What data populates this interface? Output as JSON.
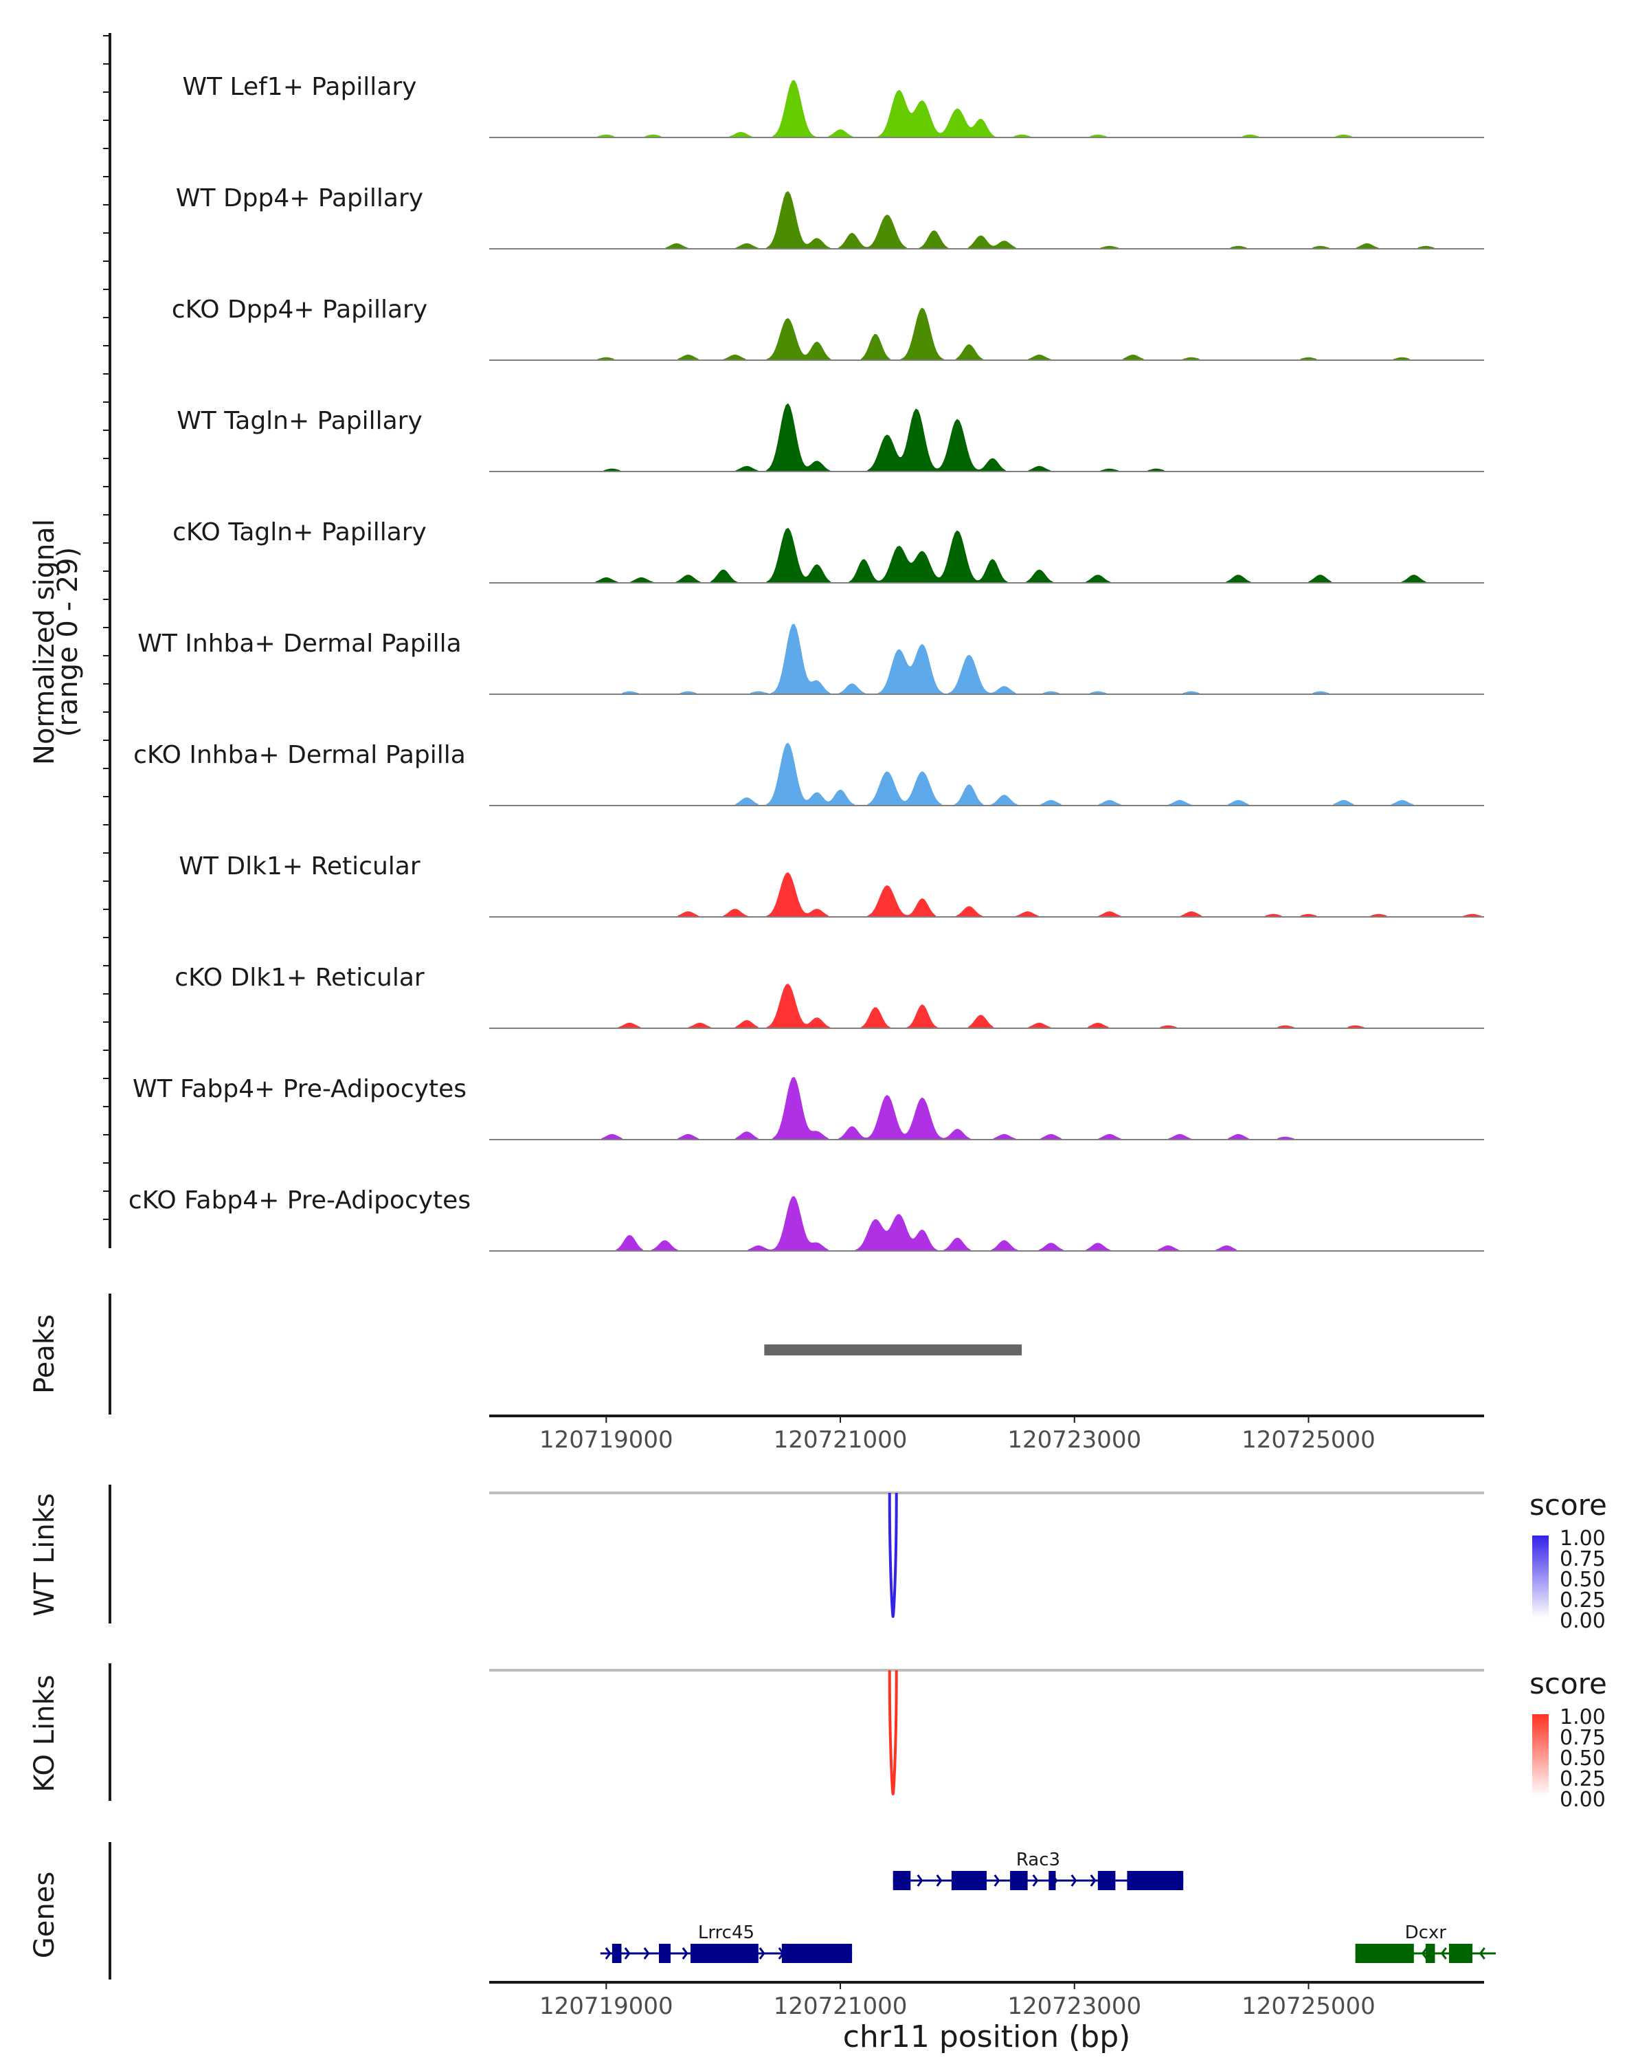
{
  "chart_data": {
    "type": "area",
    "chrom": "chr11",
    "xlim": [
      120718000,
      120726500
    ],
    "x_ticks": [
      120719000,
      120721000,
      120723000,
      120725000
    ],
    "x_tick_labels": [
      "120719000",
      "120721000",
      "120723000",
      "120725000"
    ],
    "xlabel": "chr11 position (bp)",
    "coverage_ylabel": [
      "Normalized signal",
      "(range 0 - 29)"
    ],
    "ylim": [
      0,
      29
    ],
    "coverage_tracks": [
      {
        "name": "WT Lef1+ Papillary",
        "color": "#66CC00",
        "peaks": [
          [
            120719000,
            1
          ],
          [
            120719400,
            1
          ],
          [
            120720150,
            2
          ],
          [
            120720600,
            22
          ],
          [
            120721000,
            3
          ],
          [
            120721500,
            18
          ],
          [
            120721700,
            14
          ],
          [
            120722000,
            11
          ],
          [
            120722200,
            7
          ],
          [
            120722550,
            1
          ],
          [
            120723200,
            1
          ],
          [
            120724500,
            1
          ],
          [
            120725300,
            1
          ]
        ]
      },
      {
        "name": "WT Dpp4+ Papillary",
        "color": "#4C8C00",
        "peaks": [
          [
            120719600,
            2
          ],
          [
            120720200,
            2
          ],
          [
            120720550,
            22
          ],
          [
            120720800,
            4
          ],
          [
            120721100,
            6
          ],
          [
            120721400,
            13
          ],
          [
            120721800,
            7
          ],
          [
            120722200,
            5
          ],
          [
            120722400,
            3
          ],
          [
            120723300,
            1
          ],
          [
            120724400,
            1
          ],
          [
            120725100,
            1
          ],
          [
            120725500,
            2
          ],
          [
            120726000,
            1
          ]
        ]
      },
      {
        "name": "cKO Dpp4+ Papillary",
        "color": "#4C8C00",
        "peaks": [
          [
            120719000,
            1
          ],
          [
            120719700,
            2
          ],
          [
            120720100,
            2
          ],
          [
            120720550,
            16
          ],
          [
            120720800,
            7
          ],
          [
            120721300,
            10
          ],
          [
            120721700,
            20
          ],
          [
            120722100,
            6
          ],
          [
            120722700,
            2
          ],
          [
            120723500,
            2
          ],
          [
            120724000,
            1
          ],
          [
            120725000,
            1
          ],
          [
            120725800,
            1
          ]
        ]
      },
      {
        "name": "WT Tagln+ Papillary",
        "color": "#006400",
        "peaks": [
          [
            120719050,
            1
          ],
          [
            120720200,
            2
          ],
          [
            120720550,
            26
          ],
          [
            120720800,
            4
          ],
          [
            120721400,
            14
          ],
          [
            120721650,
            24
          ],
          [
            120722000,
            20
          ],
          [
            120722300,
            5
          ],
          [
            120722700,
            2
          ],
          [
            120723300,
            1
          ],
          [
            120723700,
            1
          ]
        ]
      },
      {
        "name": "cKO Tagln+ Papillary",
        "color": "#006400",
        "peaks": [
          [
            120719000,
            2
          ],
          [
            120719300,
            2
          ],
          [
            120719700,
            3
          ],
          [
            120720000,
            5
          ],
          [
            120720550,
            21
          ],
          [
            120720800,
            7
          ],
          [
            120721200,
            9
          ],
          [
            120721500,
            14
          ],
          [
            120721700,
            12
          ],
          [
            120722000,
            20
          ],
          [
            120722300,
            9
          ],
          [
            120722700,
            5
          ],
          [
            120723200,
            3
          ],
          [
            120724400,
            3
          ],
          [
            120725100,
            3
          ],
          [
            120725900,
            3
          ]
        ]
      },
      {
        "name": "WT Inhba+ Dermal Papilla",
        "color": "#5DA9E9",
        "peaks": [
          [
            120719200,
            1
          ],
          [
            120719700,
            1
          ],
          [
            120720300,
            1
          ],
          [
            120720600,
            27
          ],
          [
            120720800,
            5
          ],
          [
            120721100,
            4
          ],
          [
            120721500,
            17
          ],
          [
            120721700,
            19
          ],
          [
            120722100,
            15
          ],
          [
            120722400,
            3
          ],
          [
            120722800,
            1
          ],
          [
            120723200,
            1
          ],
          [
            120724000,
            1
          ],
          [
            120725100,
            1
          ]
        ]
      },
      {
        "name": "cKO Inhba+ Dermal Papilla",
        "color": "#5DA9E9",
        "peaks": [
          [
            120720200,
            3
          ],
          [
            120720550,
            24
          ],
          [
            120720800,
            5
          ],
          [
            120721000,
            6
          ],
          [
            120721400,
            13
          ],
          [
            120721700,
            13
          ],
          [
            120722100,
            8
          ],
          [
            120722400,
            4
          ],
          [
            120722800,
            2
          ],
          [
            120723300,
            2
          ],
          [
            120723900,
            2
          ],
          [
            120724400,
            2
          ],
          [
            120725300,
            2
          ],
          [
            120725800,
            2
          ]
        ]
      },
      {
        "name": "WT Dlk1+ Reticular",
        "color": "#FF3333",
        "peaks": [
          [
            120719700,
            2
          ],
          [
            120720100,
            3
          ],
          [
            120720550,
            17
          ],
          [
            120720800,
            3
          ],
          [
            120721400,
            12
          ],
          [
            120721700,
            7
          ],
          [
            120722100,
            4
          ],
          [
            120722600,
            2
          ],
          [
            120723300,
            2
          ],
          [
            120724000,
            2
          ],
          [
            120724700,
            1
          ],
          [
            120725000,
            1
          ],
          [
            120725600,
            1
          ],
          [
            120726400,
            1
          ]
        ]
      },
      {
        "name": "cKO Dlk1+ Reticular",
        "color": "#FF3333",
        "peaks": [
          [
            120719200,
            2
          ],
          [
            120719800,
            2
          ],
          [
            120720200,
            3
          ],
          [
            120720550,
            17
          ],
          [
            120720800,
            4
          ],
          [
            120721300,
            8
          ],
          [
            120721700,
            9
          ],
          [
            120722200,
            5
          ],
          [
            120722700,
            2
          ],
          [
            120723200,
            2
          ],
          [
            120723800,
            1
          ],
          [
            120724800,
            1
          ],
          [
            120725400,
            1
          ]
        ]
      },
      {
        "name": "WT Fabp4+ Pre-Adipocytes",
        "color": "#B030E6",
        "peaks": [
          [
            120719050,
            2
          ],
          [
            120719700,
            2
          ],
          [
            120720200,
            3
          ],
          [
            120720600,
            24
          ],
          [
            120720800,
            3
          ],
          [
            120721100,
            5
          ],
          [
            120721400,
            17
          ],
          [
            120721700,
            16
          ],
          [
            120722000,
            4
          ],
          [
            120722400,
            2
          ],
          [
            120722800,
            2
          ],
          [
            120723300,
            2
          ],
          [
            120723900,
            2
          ],
          [
            120724400,
            2
          ],
          [
            120724800,
            1
          ]
        ]
      },
      {
        "name": "cKO Fabp4+ Pre-Adipocytes",
        "color": "#B030E6",
        "peaks": [
          [
            120719200,
            6
          ],
          [
            120719500,
            4
          ],
          [
            120720300,
            2
          ],
          [
            120720600,
            21
          ],
          [
            120720800,
            3
          ],
          [
            120721300,
            12
          ],
          [
            120721500,
            14
          ],
          [
            120721700,
            8
          ],
          [
            120722000,
            5
          ],
          [
            120722400,
            4
          ],
          [
            120722800,
            3
          ],
          [
            120723200,
            3
          ],
          [
            120723800,
            2
          ],
          [
            120724300,
            2
          ]
        ]
      }
    ],
    "peaks_track": {
      "label": "Peaks",
      "regions": [
        [
          120720350,
          120722550
        ]
      ],
      "color": "#666666"
    },
    "links_tracks": [
      {
        "label": "WT Links",
        "position": 120721450,
        "score": 1.0,
        "color": "#3322E8",
        "legend": {
          "title": "score",
          "ticks": [
            "1.00",
            "0.75",
            "0.50",
            "0.25",
            "0.00"
          ],
          "high": "#3322E8",
          "low": "#ffffff"
        }
      },
      {
        "label": "KO Links",
        "position": 120721450,
        "score": 1.0,
        "color": "#FF3322",
        "legend": {
          "title": "score",
          "ticks": [
            "1.00",
            "0.75",
            "0.50",
            "0.25",
            "0.00"
          ],
          "high": "#FF3322",
          "low": "#ffffff"
        }
      }
    ],
    "genes_track": {
      "label": "Genes",
      "genes": [
        {
          "name": "Rac3",
          "start": 120721450,
          "end": 120723930,
          "strand": "+",
          "color": "#00008B",
          "row": 0,
          "exons": [
            [
              120721450,
              120721600
            ],
            [
              120721950,
              120722250
            ],
            [
              120722450,
              120722600
            ],
            [
              120722780,
              120722840
            ],
            [
              120723200,
              120723350
            ],
            [
              120723450,
              120723930
            ]
          ]
        },
        {
          "name": "Lrrc45",
          "start": 120718950,
          "end": 120721100,
          "strand": "+",
          "color": "#00008B",
          "row": 1,
          "exons": [
            [
              120719050,
              120719130
            ],
            [
              120719450,
              120719550
            ],
            [
              120719720,
              120720300
            ],
            [
              120720500,
              120721100
            ]
          ]
        },
        {
          "name": "Dcxr",
          "start": 120725400,
          "end": 120726600,
          "strand": "-",
          "color": "#006400",
          "row": 1,
          "exons": [
            [
              120725400,
              120725900
            ],
            [
              120726000,
              120726080
            ],
            [
              120726200,
              120726400
            ]
          ]
        }
      ]
    }
  }
}
